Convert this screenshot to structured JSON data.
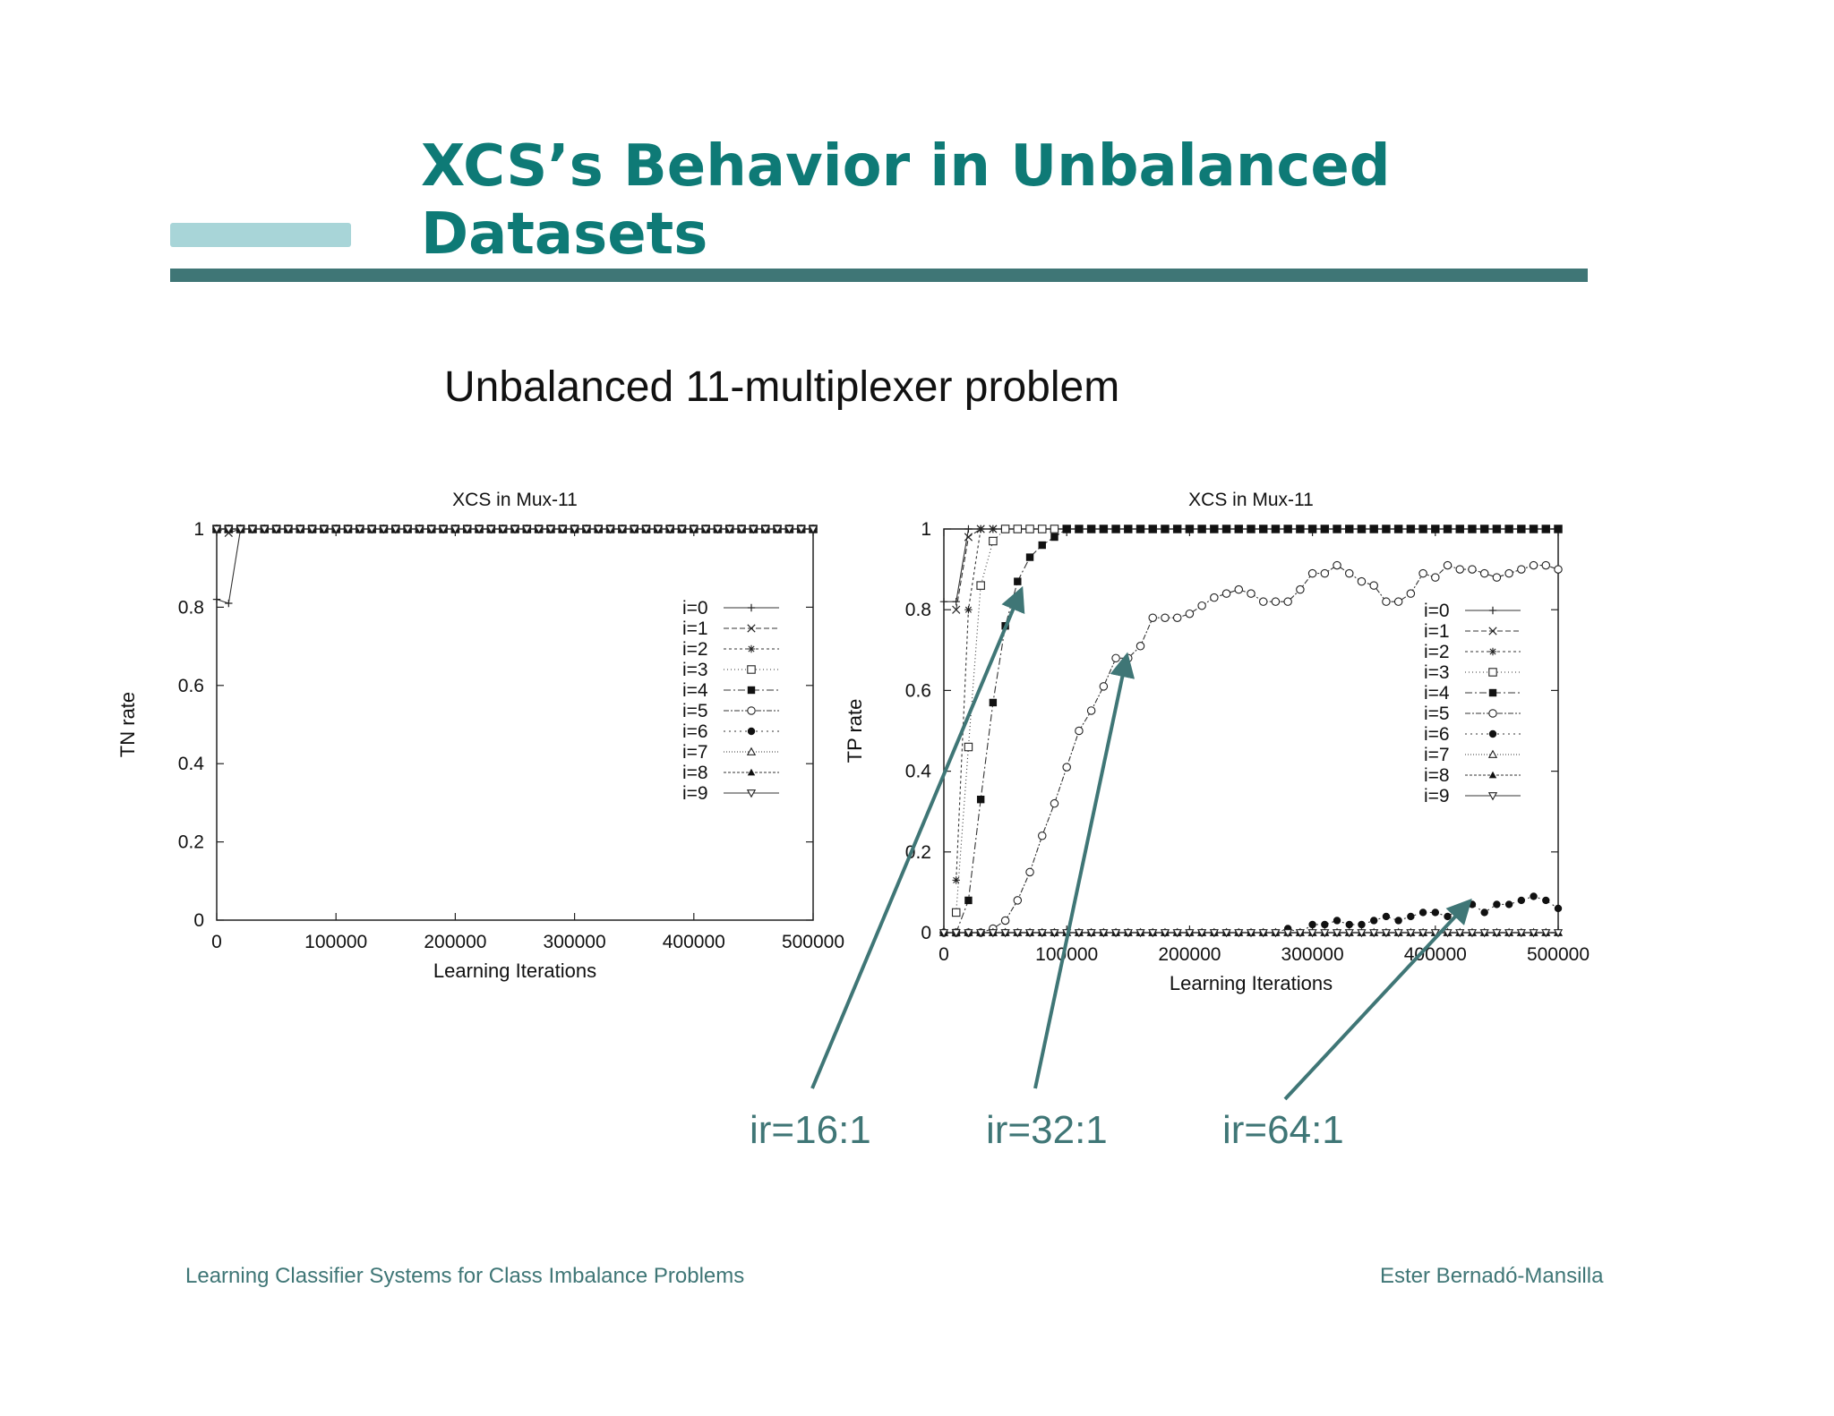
{
  "slide": {
    "title_line1": "XCS’s Behavior in Unbalanced",
    "title_line2": "Datasets",
    "subtitle": "Unbalanced 11-multiplexer problem",
    "footer_left": "Learning Classifier Systems for Class Imbalance Problems",
    "footer_right": "Ester Bernadó-Mansilla",
    "accent_color": "#0e7a76",
    "rule_color": "#3f7676",
    "arrow_color": "#3f7676"
  },
  "annotations": [
    {
      "label": "ir=16:1",
      "points_to": "i=4"
    },
    {
      "label": "ir=32:1",
      "points_to": "i=5"
    },
    {
      "label": "ir=64:1",
      "points_to": "i=6"
    }
  ],
  "chart_data": [
    {
      "type": "line",
      "title": "XCS in Mux-11",
      "xlabel": "Learning Iterations",
      "ylabel": "TN rate",
      "xlim": [
        0,
        500000
      ],
      "ylim": [
        0,
        1
      ],
      "xticks": [
        "0",
        "100000",
        "200000",
        "300000",
        "400000",
        "500000"
      ],
      "yticks": [
        "0",
        "0.2",
        "0.4",
        "0.6",
        "0.8",
        "1"
      ],
      "legend_position": "right",
      "series": [
        {
          "name": "i=0",
          "marker": "plus",
          "x": [
            0,
            10000,
            20000,
            500000
          ],
          "y": [
            0.82,
            0.81,
            1.0,
            1.0
          ]
        },
        {
          "name": "i=1",
          "marker": "x",
          "x": [
            0,
            10000,
            20000,
            500000
          ],
          "y": [
            1.0,
            0.99,
            1.0,
            1.0
          ]
        },
        {
          "name": "i=2",
          "marker": "star",
          "x": [
            0,
            500000
          ],
          "y": [
            1.0,
            1.0
          ]
        },
        {
          "name": "i=3",
          "marker": "square-open",
          "x": [
            0,
            500000
          ],
          "y": [
            1.0,
            1.0
          ]
        },
        {
          "name": "i=4",
          "marker": "square-filled",
          "x": [
            0,
            500000
          ],
          "y": [
            1.0,
            1.0
          ]
        },
        {
          "name": "i=5",
          "marker": "circle-open",
          "x": [
            0,
            500000
          ],
          "y": [
            1.0,
            1.0
          ]
        },
        {
          "name": "i=6",
          "marker": "circle-filled",
          "x": [
            0,
            500000
          ],
          "y": [
            1.0,
            1.0
          ]
        },
        {
          "name": "i=7",
          "marker": "triangle-open",
          "x": [
            0,
            500000
          ],
          "y": [
            1.0,
            1.0
          ]
        },
        {
          "name": "i=8",
          "marker": "triangle-filled",
          "x": [
            0,
            500000
          ],
          "y": [
            1.0,
            1.0
          ]
        },
        {
          "name": "i=9",
          "marker": "triangle-down-open",
          "x": [
            0,
            500000
          ],
          "y": [
            1.0,
            1.0
          ]
        }
      ]
    },
    {
      "type": "line",
      "title": "XCS in Mux-11",
      "xlabel": "Learning Iterations",
      "ylabel": "TP rate",
      "xlim": [
        0,
        500000
      ],
      "ylim": [
        0,
        1
      ],
      "xticks": [
        "0",
        "100000",
        "200000",
        "300000",
        "400000",
        "500000"
      ],
      "yticks": [
        "0",
        "0.2",
        "0.4",
        "0.6",
        "0.8",
        "1"
      ],
      "legend_position": "right",
      "series": [
        {
          "name": "i=0",
          "marker": "plus",
          "x": [
            0,
            10000,
            20000,
            500000
          ],
          "y": [
            0.82,
            0.82,
            1.0,
            1.0
          ]
        },
        {
          "name": "i=1",
          "marker": "x",
          "x": [
            10000,
            20000,
            30000,
            500000
          ],
          "y": [
            0.8,
            0.98,
            1.0,
            1.0
          ]
        },
        {
          "name": "i=2",
          "marker": "star",
          "x": [
            10000,
            20000,
            30000,
            40000,
            500000
          ],
          "y": [
            0.13,
            0.8,
            1.0,
            1.0,
            1.0
          ]
        },
        {
          "name": "i=3",
          "marker": "square-open",
          "x": [
            10000,
            20000,
            30000,
            40000,
            50000,
            500000
          ],
          "y": [
            0.05,
            0.46,
            0.86,
            0.97,
            1.0,
            1.0
          ]
        },
        {
          "name": "i=4",
          "marker": "square-filled",
          "x": [
            10000,
            20000,
            30000,
            40000,
            50000,
            60000,
            70000,
            80000,
            90000,
            100000,
            500000
          ],
          "y": [
            0.0,
            0.08,
            0.33,
            0.57,
            0.76,
            0.87,
            0.93,
            0.96,
            0.98,
            1.0,
            1.0
          ]
        },
        {
          "name": "i=5",
          "marker": "circle-open",
          "x": [
            0,
            30000,
            40000,
            50000,
            60000,
            70000,
            80000,
            90000,
            100000,
            110000,
            120000,
            130000,
            140000,
            150000,
            160000,
            170000,
            180000,
            190000,
            200000,
            210000,
            220000,
            230000,
            240000,
            250000,
            260000,
            270000,
            280000,
            290000,
            300000,
            310000,
            320000,
            330000,
            340000,
            350000,
            360000,
            370000,
            380000,
            390000,
            400000,
            410000,
            420000,
            430000,
            440000,
            450000,
            460000,
            470000,
            480000,
            490000,
            500000
          ],
          "y": [
            0.0,
            0.0,
            0.01,
            0.03,
            0.08,
            0.15,
            0.24,
            0.32,
            0.41,
            0.5,
            0.55,
            0.61,
            0.68,
            0.68,
            0.71,
            0.78,
            0.78,
            0.78,
            0.79,
            0.81,
            0.83,
            0.84,
            0.85,
            0.84,
            0.82,
            0.82,
            0.82,
            0.85,
            0.89,
            0.89,
            0.91,
            0.89,
            0.87,
            0.86,
            0.82,
            0.82,
            0.84,
            0.89,
            0.88,
            0.91,
            0.9,
            0.9,
            0.89,
            0.88,
            0.89,
            0.9,
            0.91,
            0.91,
            0.9
          ]
        },
        {
          "name": "i=6",
          "marker": "circle-filled",
          "x": [
            0,
            50000,
            100000,
            150000,
            200000,
            250000,
            270000,
            280000,
            290000,
            300000,
            310000,
            320000,
            330000,
            340000,
            350000,
            360000,
            370000,
            380000,
            390000,
            400000,
            410000,
            420000,
            430000,
            440000,
            450000,
            460000,
            470000,
            480000,
            490000,
            500000
          ],
          "y": [
            0.0,
            0.0,
            0.0,
            0.0,
            0.0,
            0.0,
            0.0,
            0.01,
            0.0,
            0.02,
            0.02,
            0.03,
            0.02,
            0.02,
            0.03,
            0.04,
            0.03,
            0.04,
            0.05,
            0.05,
            0.04,
            0.06,
            0.07,
            0.05,
            0.07,
            0.07,
            0.08,
            0.09,
            0.08,
            0.06
          ]
        },
        {
          "name": "i=7",
          "marker": "triangle-open",
          "x": [
            0,
            500000
          ],
          "y": [
            0.0,
            0.0
          ]
        },
        {
          "name": "i=8",
          "marker": "triangle-filled",
          "x": [
            0,
            500000
          ],
          "y": [
            0.0,
            0.0
          ]
        },
        {
          "name": "i=9",
          "marker": "triangle-down-open",
          "x": [
            0,
            500000
          ],
          "y": [
            0.0,
            0.0
          ]
        }
      ]
    }
  ]
}
